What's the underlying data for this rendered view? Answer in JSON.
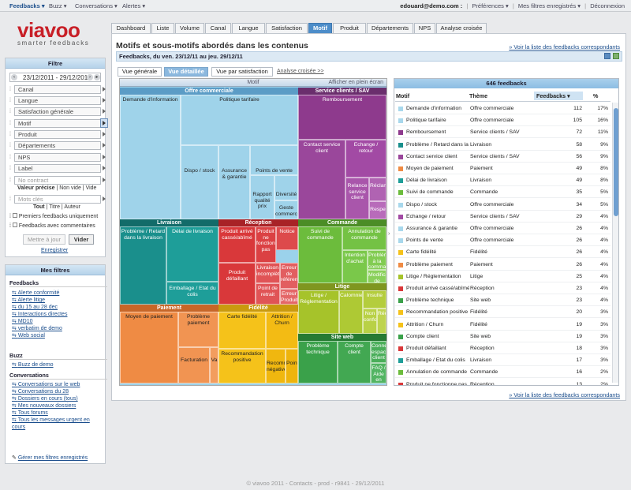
{
  "topbar": {
    "menus": [
      "Feedbacks",
      "Buzz",
      "Conversations",
      "Alertes"
    ],
    "user": "edouard@demo.com :",
    "right_links": [
      "Préférences",
      "Mes filtres enregistrés",
      "Déconnexion"
    ]
  },
  "logo": {
    "word_a": "via",
    "word_b": "voo",
    "tagline": "smarter feedbacks"
  },
  "filter": {
    "title": "Filtre",
    "date_range": "23/12/2011 - 29/12/2011",
    "selects": [
      "Canal",
      "Langue",
      "Satisfaction générale",
      "Motif",
      "Produit",
      "Départements",
      "NPS",
      "Label"
    ],
    "contract_placeholder": "No contract",
    "contract_opts": [
      "Valeur précise",
      "Non vide",
      "Vide"
    ],
    "keywords_placeholder": "Mots clés",
    "keyword_opts": [
      "Tout",
      "Titre",
      "Auteur"
    ],
    "check1": "Premiers feedbacks uniquement",
    "check2": "Feedbacks avec commentaires",
    "btn_apply": "Mettre à jour",
    "btn_clear": "Vider",
    "save_link": "Enregistrer"
  },
  "mes_filtres": {
    "title": "Mes filtres",
    "feedbacks_title": "Feedbacks",
    "feedbacks": [
      "Alerte conformité",
      "Alerte litige",
      "du 15 au 28 dec",
      "Interactions directes",
      "MD10",
      "verbatim de demo",
      "Web social"
    ],
    "buzz_title": "Buzz",
    "buzz": [
      "Buzz de demo"
    ],
    "conv_title": "Conversations",
    "conversations": [
      "Conversations sur le web",
      "Conversations du 28",
      "Dossiers en cours (tous)",
      "Mes nouveaux dossiers",
      "Tous forums",
      "Tous les messages urgent en cours"
    ],
    "manage": "Gérer mes filtres enregistrés"
  },
  "tabs": [
    "Dashboard",
    "Liste",
    "Volume",
    "Canal",
    "Langue",
    "Satisfaction",
    "Motif",
    "Produit",
    "Départements",
    "NPS",
    "Analyse croisée"
  ],
  "active_tab": "Motif",
  "main": {
    "title": "Motifs et sous-motifs abordés dans les contenus",
    "top_link": "» Voir la liste des feedbacks correspondants",
    "bottom_link": "» Voir la liste des feedbacks correspondants",
    "subbar": "Feedbacks, du ven. 23/12/11 au jeu. 29/12/11",
    "view_tabs": [
      "Vue générale",
      "Vue détaillée",
      "Vue par satisfaction"
    ],
    "view_link": "Analyse croisée >>"
  },
  "treemap": {
    "header": "Motif",
    "fullscreen": "Afficher en plein écran",
    "groups": [
      "Offre commerciale",
      "Service clients / SAV",
      "Livraison",
      "Réception",
      "Commande",
      "Fidélité",
      "Paiement",
      "Litige",
      "Site web"
    ],
    "cells": [
      "Demande d'information",
      "Politique tarifaire",
      "Dispo / stock",
      "Assurance & garantie",
      "Points de vente",
      "Rapport qualité prix",
      "Diversité",
      "Geste commercial",
      "Remboursement",
      "Contact service client",
      "Echange / retour",
      "Relance service client",
      "Réclam",
      "Respe",
      "Problème / Retard dans la livraison",
      "Délai de livraison",
      "Emballage / Etat du colis",
      "Produit arrivé cassé/abîmé",
      "Produit ne fonctionne pas",
      "Notice",
      "Produit défaillant",
      "Livraison incomplète",
      "Point de retrait",
      "Erreur de référence",
      "Erreur Produit",
      "Suivi de commande",
      "Annulation de commande",
      "Intention d'achat",
      "Problème à la commande",
      "Modification de commande",
      "Carte fidélité",
      "Attrition / Churn",
      "Recommandation positive",
      "Recommandation négative",
      "Points",
      "Moyen de paiement",
      "Problème paiement",
      "Facturation",
      "Va",
      "Litige / Réglementation",
      "Calomnie",
      "Insulte",
      "Non conformité",
      "Réclam",
      "Problème technique",
      "Compte client",
      "Connexion espace client",
      "FAQ / Aide en ligne"
    ]
  },
  "table": {
    "header": "646 feedbacks",
    "cols": [
      "Motif",
      "Thème",
      "Feedbacks",
      "%"
    ],
    "rows": [
      {
        "motif": "Demande d'information",
        "theme": "Offre commerciale",
        "n": "112",
        "pct": "17%",
        "color": "#a8d8ec"
      },
      {
        "motif": "Politique tarifaire",
        "theme": "Offre commerciale",
        "n": "105",
        "pct": "16%",
        "color": "#a8d8ec"
      },
      {
        "motif": "Remboursement",
        "theme": "Service clients / SAV",
        "n": "72",
        "pct": "11%",
        "color": "#8e3a8d"
      },
      {
        "motif": "Problème / Retard dans la livraison",
        "theme": "Livraison",
        "n": "58",
        "pct": "9%",
        "color": "#1a8f8c"
      },
      {
        "motif": "Contact service client",
        "theme": "Service clients / SAV",
        "n": "56",
        "pct": "9%",
        "color": "#9a479b"
      },
      {
        "motif": "Moyen de paiement",
        "theme": "Paiement",
        "n": "49",
        "pct": "8%",
        "color": "#ef8b44"
      },
      {
        "motif": "Délai de livraison",
        "theme": "Livraison",
        "n": "49",
        "pct": "8%",
        "color": "#1e9e99"
      },
      {
        "motif": "Suivi de commande",
        "theme": "Commande",
        "n": "35",
        "pct": "5%",
        "color": "#6cbc3c"
      },
      {
        "motif": "Dispo / stock",
        "theme": "Offre commerciale",
        "n": "34",
        "pct": "5%",
        "color": "#a8d8ec"
      },
      {
        "motif": "Echange / retour",
        "theme": "Service clients / SAV",
        "n": "29",
        "pct": "4%",
        "color": "#a24aa4"
      },
      {
        "motif": "Assurance & garantie",
        "theme": "Offre commerciale",
        "n": "26",
        "pct": "4%",
        "color": "#a8d8ec"
      },
      {
        "motif": "Points de vente",
        "theme": "Offre commerciale",
        "n": "26",
        "pct": "4%",
        "color": "#a8d8ec"
      },
      {
        "motif": "Carte fidélité",
        "theme": "Fidélité",
        "n": "26",
        "pct": "4%",
        "color": "#f5c21a"
      },
      {
        "motif": "Problème paiement",
        "theme": "Paiement",
        "n": "26",
        "pct": "4%",
        "color": "#ef8b44"
      },
      {
        "motif": "Litige / Réglementation",
        "theme": "Litige",
        "n": "25",
        "pct": "4%",
        "color": "#a6c32a"
      },
      {
        "motif": "Produit arrivé cassé/abîmé",
        "theme": "Réception",
        "n": "23",
        "pct": "4%",
        "color": "#d9383a"
      },
      {
        "motif": "Problème technique",
        "theme": "Site web",
        "n": "23",
        "pct": "4%",
        "color": "#3aa14a"
      },
      {
        "motif": "Recommandation positive",
        "theme": "Fidélité",
        "n": "20",
        "pct": "3%",
        "color": "#f5c21a"
      },
      {
        "motif": "Attrition / Churn",
        "theme": "Fidélité",
        "n": "19",
        "pct": "3%",
        "color": "#f5c21a"
      },
      {
        "motif": "Compte client",
        "theme": "Site web",
        "n": "19",
        "pct": "3%",
        "color": "#3aa14a"
      },
      {
        "motif": "Produit défaillant",
        "theme": "Réception",
        "n": "18",
        "pct": "3%",
        "color": "#d9383a"
      },
      {
        "motif": "Emballage / Etat du colis",
        "theme": "Livraison",
        "n": "17",
        "pct": "3%",
        "color": "#1e9e99"
      },
      {
        "motif": "Annulation de commande",
        "theme": "Commande",
        "n": "16",
        "pct": "2%",
        "color": "#6cbc3c"
      },
      {
        "motif": "Produit ne fonctionne pas",
        "theme": "Réception",
        "n": "13",
        "pct": "2%",
        "color": "#d9383a"
      }
    ]
  },
  "footer": "© viavoo 2011 - Contacts - prod - r9841 - 29/12/2011"
}
